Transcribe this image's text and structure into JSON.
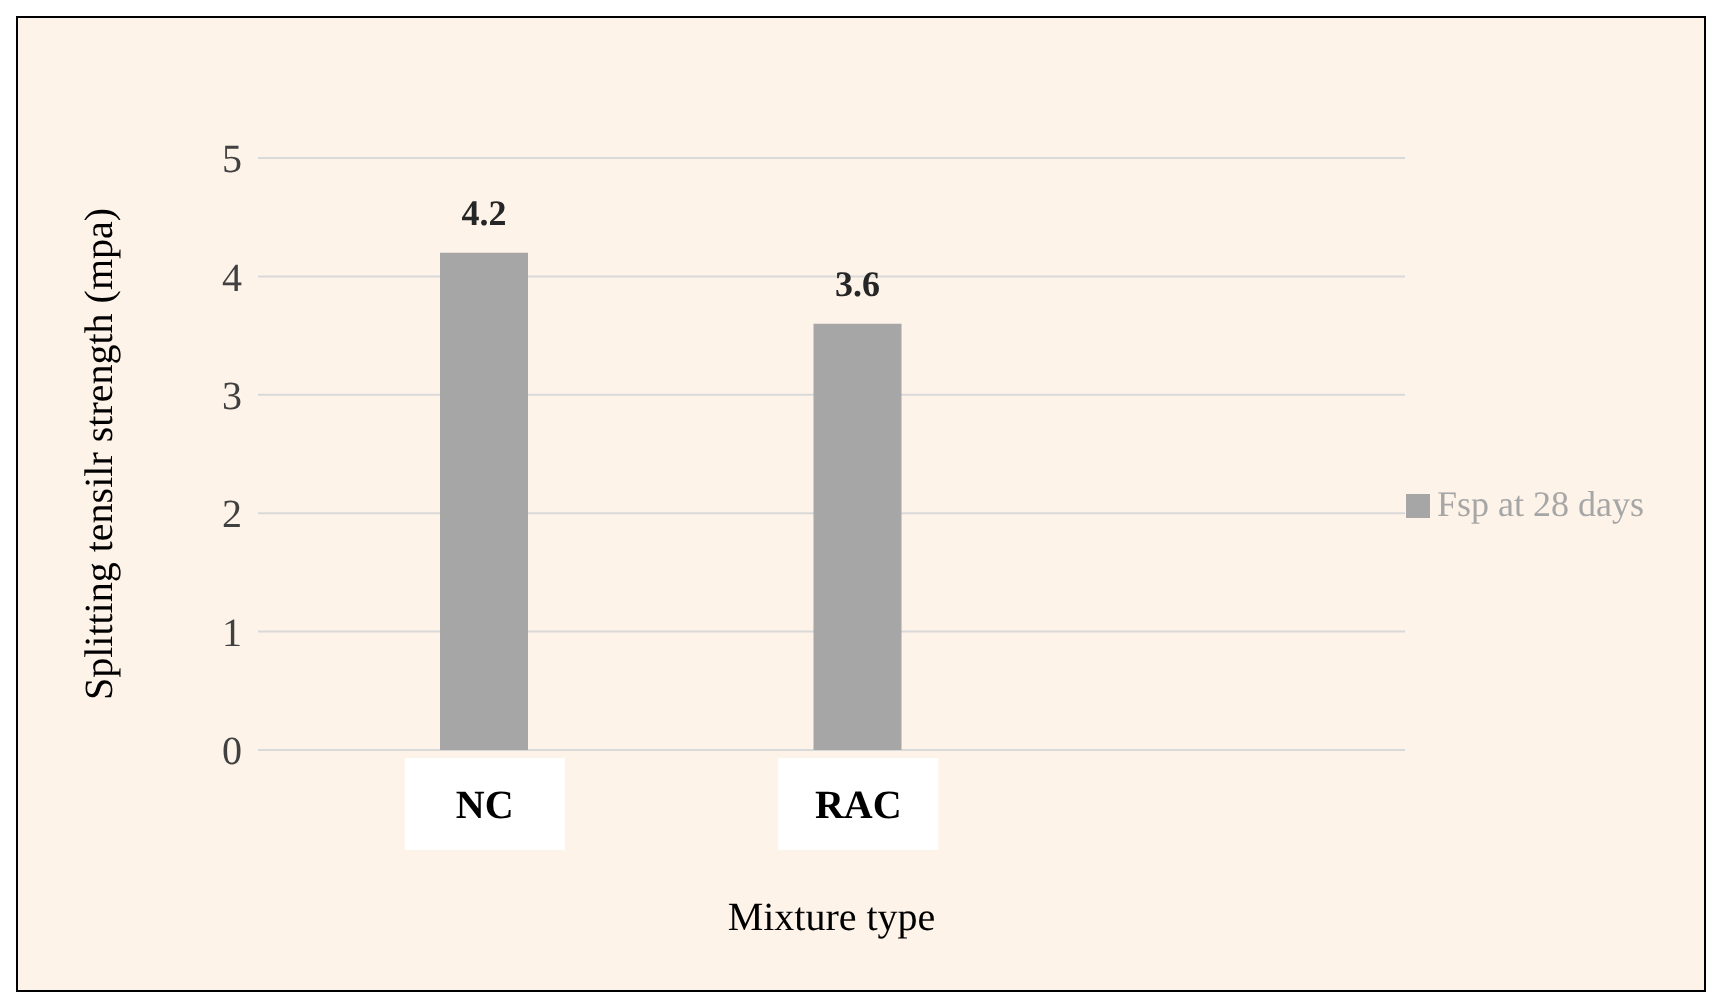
{
  "chart_data": {
    "type": "bar",
    "xlabel": "Mixture type",
    "ylabel": "Splitting tensilr strength (mpa)",
    "categories": [
      "NC",
      "RAC"
    ],
    "series": [
      {
        "name": "Fsp at 28 days",
        "color": "#a6a6a6",
        "values": [
          4.2,
          3.6
        ]
      }
    ],
    "ylim": [
      0,
      5
    ],
    "yticks": [
      0,
      1,
      2,
      3,
      4,
      5
    ],
    "grid": "y",
    "legend": "right",
    "data_labels": true
  }
}
